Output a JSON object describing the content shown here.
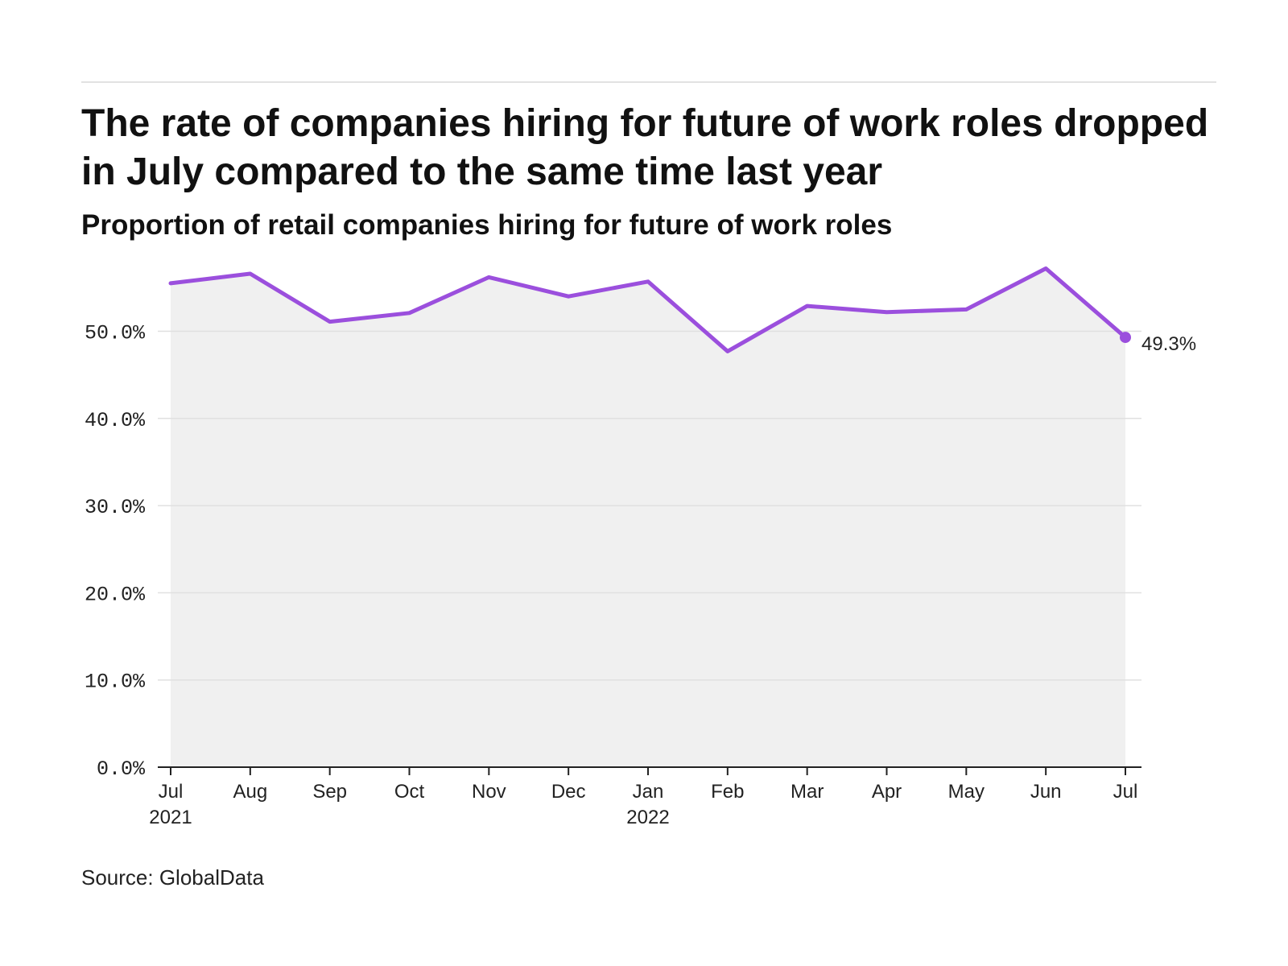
{
  "header": {
    "title": "The rate of companies hiring for future of work roles dropped in July compared to the same time last year",
    "subtitle": "Proportion of retail companies hiring for future of work roles"
  },
  "footer": {
    "source": "Source: GlobalData"
  },
  "colors": {
    "line": "#9b4fdd",
    "area": "#f0f0f0",
    "grid": "#e0e0e0",
    "axis": "#222222"
  },
  "chart_data": {
    "type": "area",
    "x": [
      "Jul 2021",
      "Aug 2021",
      "Sep 2021",
      "Oct 2021",
      "Nov 2021",
      "Dec 2021",
      "Jan 2022",
      "Feb 2022",
      "Mar 2022",
      "Apr 2022",
      "May 2022",
      "Jun 2022",
      "Jul 2022"
    ],
    "x_tick_labels": [
      {
        "month": "Jul",
        "year": "2021"
      },
      {
        "month": "Aug",
        "year": ""
      },
      {
        "month": "Sep",
        "year": ""
      },
      {
        "month": "Oct",
        "year": ""
      },
      {
        "month": "Nov",
        "year": ""
      },
      {
        "month": "Dec",
        "year": ""
      },
      {
        "month": "Jan",
        "year": "2022"
      },
      {
        "month": "Feb",
        "year": ""
      },
      {
        "month": "Mar",
        "year": ""
      },
      {
        "month": "Apr",
        "year": ""
      },
      {
        "month": "May",
        "year": ""
      },
      {
        "month": "Jun",
        "year": ""
      },
      {
        "month": "Jul",
        "year": ""
      }
    ],
    "series": [
      {
        "values": [
          55.5,
          56.6,
          51.1,
          52.1,
          56.2,
          54.0,
          55.7,
          47.7,
          52.9,
          52.2,
          52.5,
          57.2,
          49.3
        ]
      }
    ],
    "y_ticks": [
      0,
      10,
      20,
      30,
      40,
      50
    ],
    "y_tick_labels": [
      "0.0%",
      "10.0%",
      "20.0%",
      "30.0%",
      "40.0%",
      "50.0%"
    ],
    "ylim": [
      0,
      60
    ],
    "end_label": "49.3%",
    "xlabel": "",
    "ylabel": "",
    "grid": true,
    "legend": "none"
  }
}
